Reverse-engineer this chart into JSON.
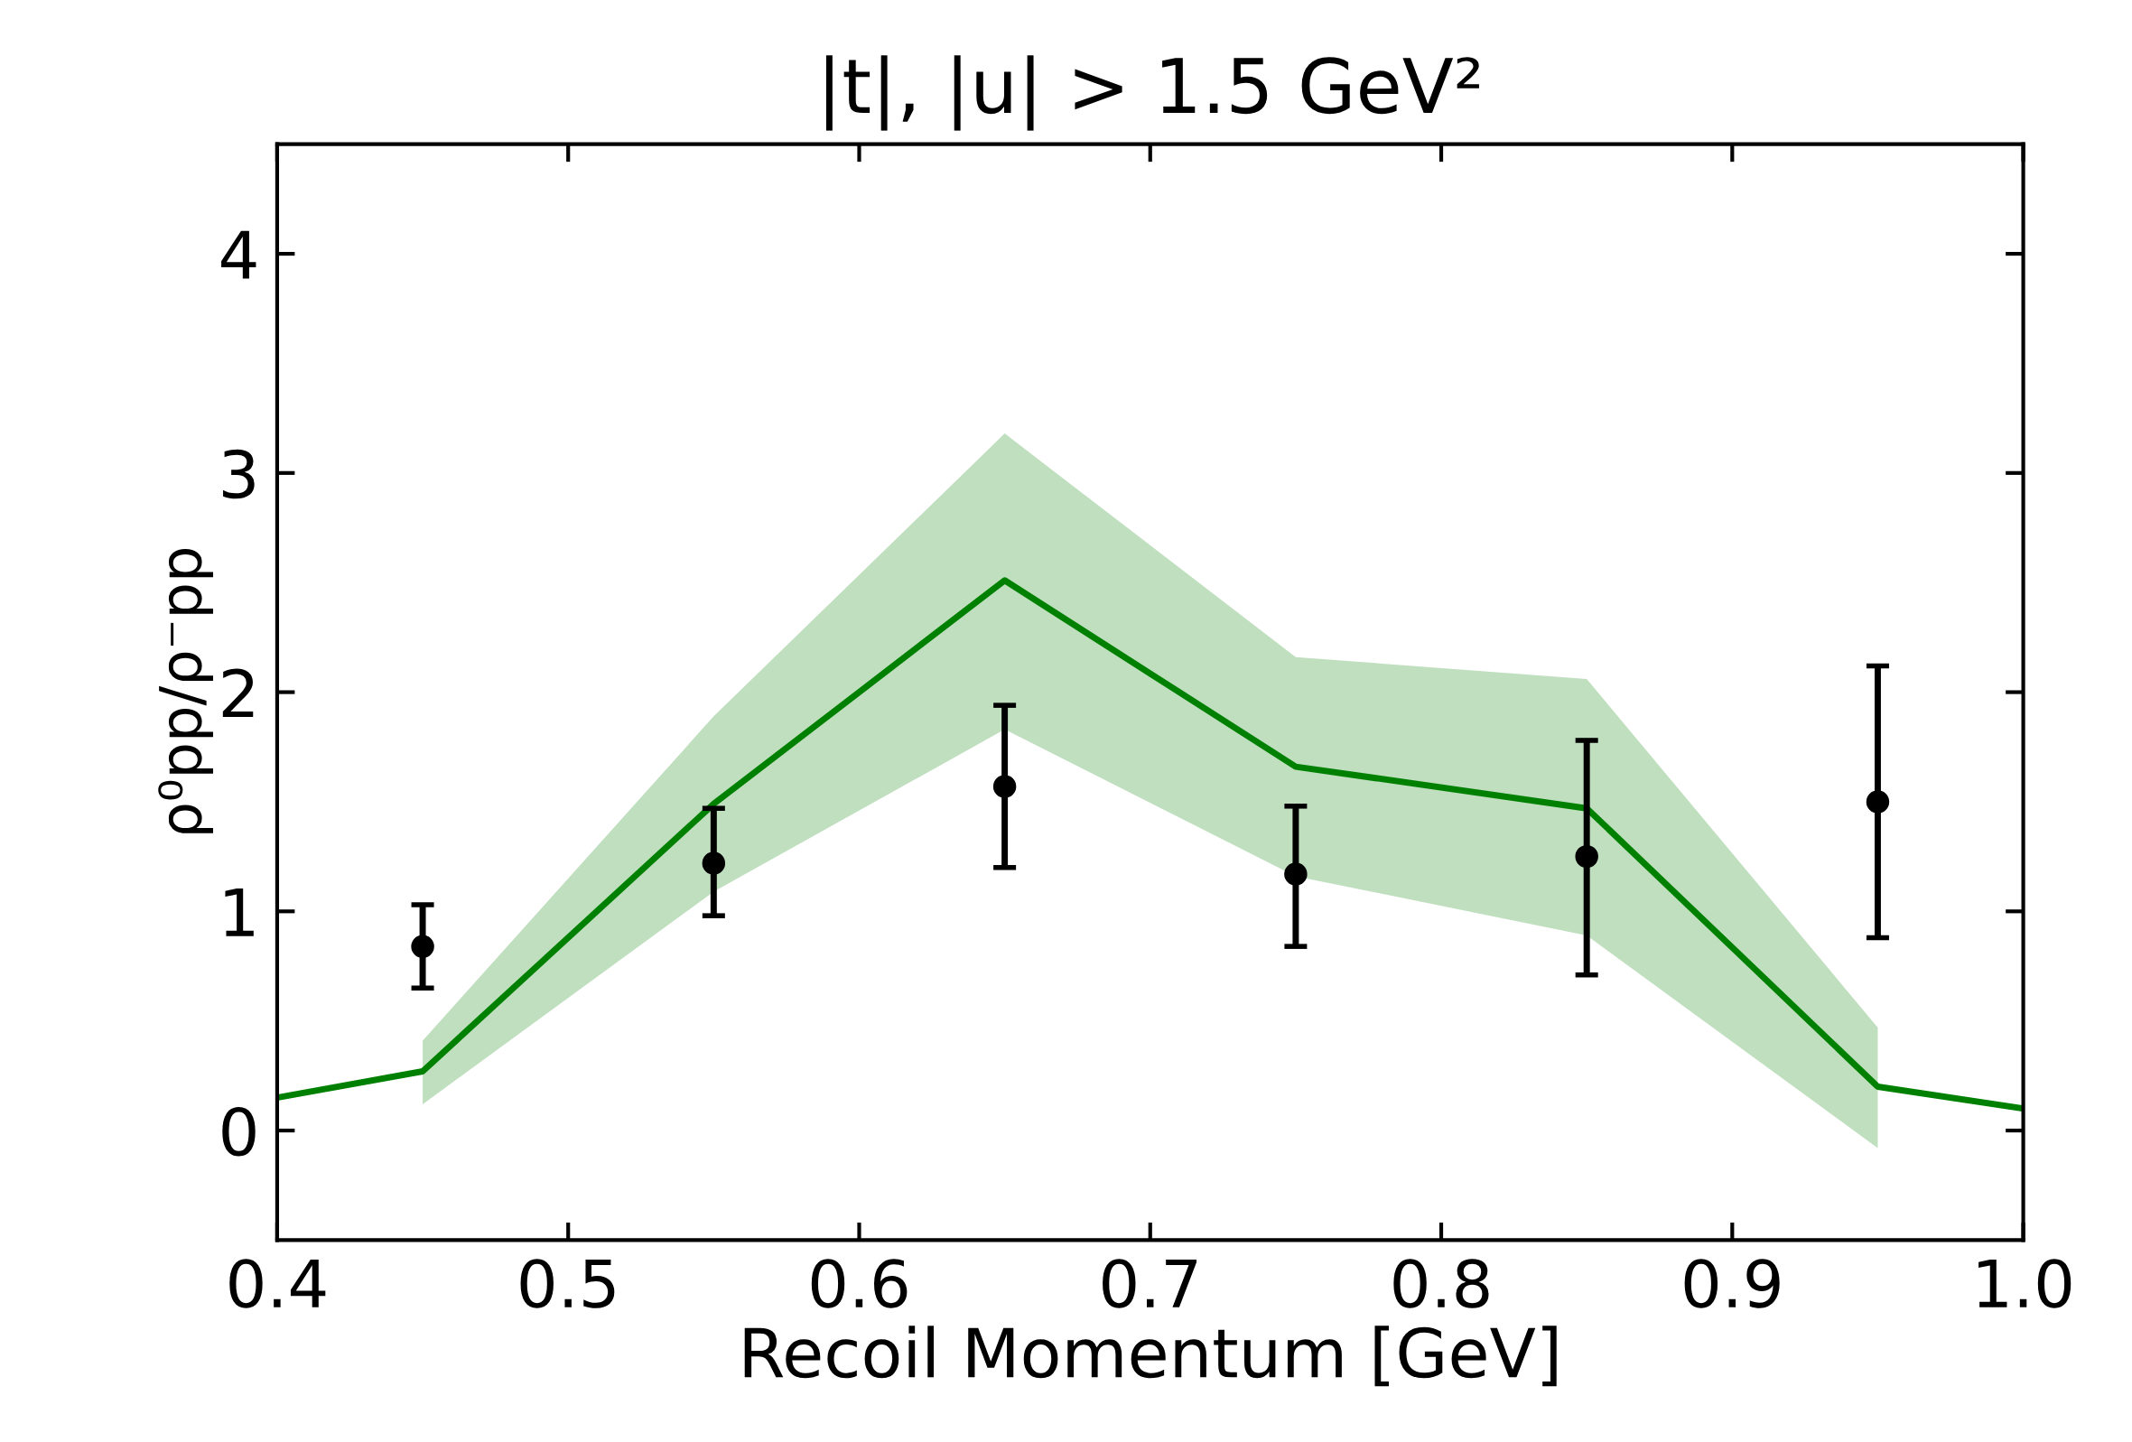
{
  "chart_data": {
    "type": "line",
    "title": "|t|, |u| > 1.5 GeV²",
    "xlabel": "Recoil Momentum [GeV]",
    "ylabel": "ρ⁰pp/ρ⁻pp",
    "xlim": [
      0.4,
      1.0
    ],
    "xticks": [
      {
        "value": 0.4,
        "label": "0.4"
      },
      {
        "value": 0.5,
        "label": "0.5"
      },
      {
        "value": 0.6,
        "label": "0.6"
      },
      {
        "value": 0.7,
        "label": "0.7"
      },
      {
        "value": 0.8,
        "label": "0.8"
      },
      {
        "value": 0.9,
        "label": "0.9"
      },
      {
        "value": 1.0,
        "label": "1.0"
      }
    ],
    "ylim": [
      -0.5,
      4.5
    ],
    "yticks": [
      0,
      1,
      2,
      3,
      4
    ],
    "grid": false,
    "series": [
      {
        "color": "#008000",
        "x": [
          0.4,
          0.45,
          0.55,
          0.65,
          0.75,
          0.85,
          0.95,
          1.0
        ],
        "values": [
          0.15,
          0.27,
          1.49,
          2.51,
          1.66,
          1.47,
          0.2,
          0.1
        ],
        "lower": [
          null,
          0.12,
          1.09,
          1.83,
          1.16,
          0.89,
          -0.08,
          null
        ],
        "upper": [
          null,
          0.41,
          1.89,
          3.18,
          2.16,
          2.06,
          0.47,
          null
        ]
      },
      {
        "type": "scatter",
        "color": "#000000",
        "marker": "circle",
        "x": [
          0.45,
          0.55,
          0.65,
          0.75,
          0.85,
          0.95
        ],
        "values": [
          0.84,
          1.22,
          1.57,
          1.17,
          1.25,
          1.5
        ],
        "errors": [
          [
            0.65,
            1.03
          ],
          [
            0.98,
            1.47
          ],
          [
            1.2,
            1.94
          ],
          [
            0.84,
            1.48
          ],
          [
            0.71,
            1.78
          ],
          [
            0.88,
            2.12
          ]
        ]
      }
    ]
  }
}
